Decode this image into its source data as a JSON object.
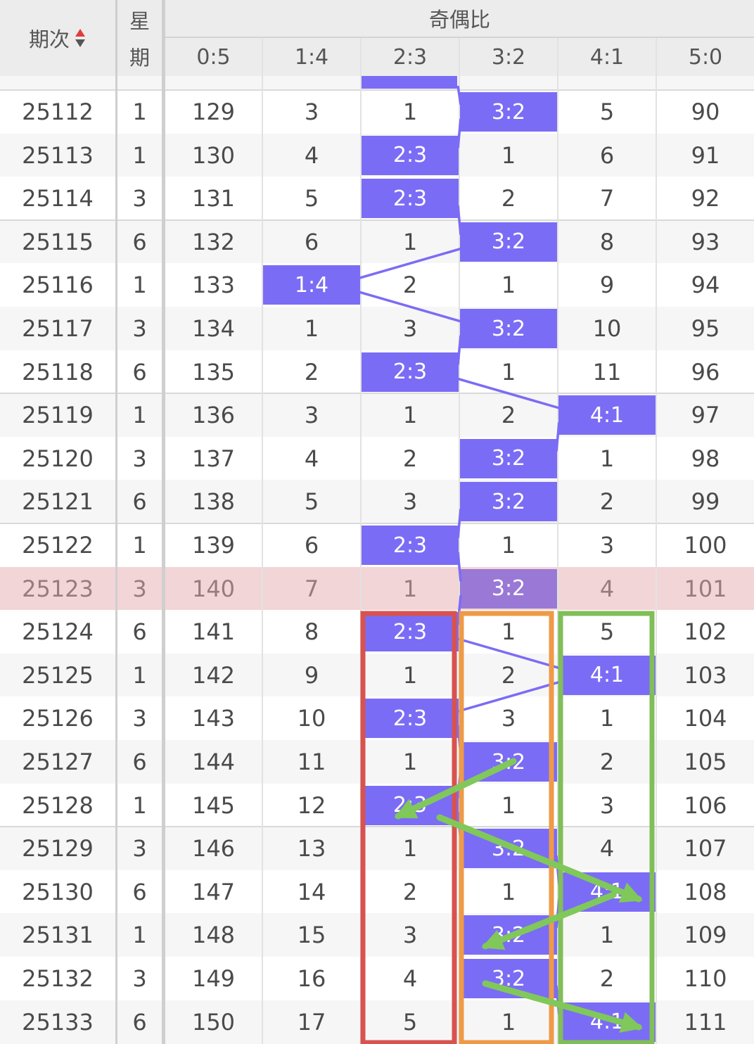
{
  "header": {
    "period_label": "期次",
    "week_label_top": "星",
    "week_label_bottom": "期",
    "group_label": "奇偶比",
    "ratio_columns": [
      "0:5",
      "1:4",
      "2:3",
      "3:2",
      "4:1",
      "5:0"
    ]
  },
  "colors": {
    "hit": "#7b6cf5",
    "highlight_row": "#f2d5d7",
    "sort_up": "#e23b3b",
    "sort_down": "#555555",
    "box_red": "#d8524f",
    "box_orange": "#ee9a47",
    "box_green": "#80be57",
    "arrow_green": "#80c85a"
  },
  "icons": {
    "sort": "sort-toggle-icon"
  },
  "highlight_period": "25123",
  "rows": [
    {
      "period": "25112",
      "week": "1",
      "cells": [
        "129",
        "3",
        "1",
        "3:2",
        "5",
        "90"
      ],
      "hit": 3
    },
    {
      "period": "25113",
      "week": "1",
      "cells": [
        "130",
        "4",
        "2:3",
        "1",
        "6",
        "91"
      ],
      "hit": 2
    },
    {
      "period": "25114",
      "week": "3",
      "cells": [
        "131",
        "5",
        "2:3",
        "2",
        "7",
        "92"
      ],
      "hit": 2
    },
    {
      "period": "25115",
      "week": "6",
      "cells": [
        "132",
        "6",
        "1",
        "3:2",
        "8",
        "93"
      ],
      "hit": 3
    },
    {
      "period": "25116",
      "week": "1",
      "cells": [
        "133",
        "1:4",
        "2",
        "1",
        "9",
        "94"
      ],
      "hit": 1
    },
    {
      "period": "25117",
      "week": "3",
      "cells": [
        "134",
        "1",
        "3",
        "3:2",
        "10",
        "95"
      ],
      "hit": 3
    },
    {
      "period": "25118",
      "week": "6",
      "cells": [
        "135",
        "2",
        "2:3",
        "1",
        "11",
        "96"
      ],
      "hit": 2
    },
    {
      "period": "25119",
      "week": "1",
      "cells": [
        "136",
        "3",
        "1",
        "2",
        "4:1",
        "97"
      ],
      "hit": 4
    },
    {
      "period": "25120",
      "week": "3",
      "cells": [
        "137",
        "4",
        "2",
        "3:2",
        "1",
        "98"
      ],
      "hit": 3
    },
    {
      "period": "25121",
      "week": "6",
      "cells": [
        "138",
        "5",
        "3",
        "3:2",
        "2",
        "99"
      ],
      "hit": 3
    },
    {
      "period": "25122",
      "week": "1",
      "cells": [
        "139",
        "6",
        "2:3",
        "1",
        "3",
        "100"
      ],
      "hit": 2
    },
    {
      "period": "25123",
      "week": "3",
      "cells": [
        "140",
        "7",
        "1",
        "3:2",
        "4",
        "101"
      ],
      "hit": 3
    },
    {
      "period": "25124",
      "week": "6",
      "cells": [
        "141",
        "8",
        "2:3",
        "1",
        "5",
        "102"
      ],
      "hit": 2
    },
    {
      "period": "25125",
      "week": "1",
      "cells": [
        "142",
        "9",
        "1",
        "2",
        "4:1",
        "103"
      ],
      "hit": 4
    },
    {
      "period": "25126",
      "week": "3",
      "cells": [
        "143",
        "10",
        "2:3",
        "3",
        "1",
        "104"
      ],
      "hit": 2
    },
    {
      "period": "25127",
      "week": "6",
      "cells": [
        "144",
        "11",
        "1",
        "3:2",
        "2",
        "105"
      ],
      "hit": 3
    },
    {
      "period": "25128",
      "week": "1",
      "cells": [
        "145",
        "12",
        "2:3",
        "1",
        "3",
        "106"
      ],
      "hit": 2
    },
    {
      "period": "25129",
      "week": "3",
      "cells": [
        "146",
        "13",
        "1",
        "3:2",
        "4",
        "107"
      ],
      "hit": 3
    },
    {
      "period": "25130",
      "week": "6",
      "cells": [
        "147",
        "14",
        "2",
        "1",
        "4:1",
        "108"
      ],
      "hit": 4
    },
    {
      "period": "25131",
      "week": "1",
      "cells": [
        "148",
        "15",
        "3",
        "3:2",
        "1",
        "109"
      ],
      "hit": 3
    },
    {
      "period": "25132",
      "week": "3",
      "cells": [
        "149",
        "16",
        "4",
        "3:2",
        "2",
        "110"
      ],
      "hit": 3
    },
    {
      "period": "25133",
      "week": "6",
      "cells": [
        "150",
        "17",
        "5",
        "1",
        "4:1",
        "111"
      ],
      "hit": 4
    }
  ]
}
